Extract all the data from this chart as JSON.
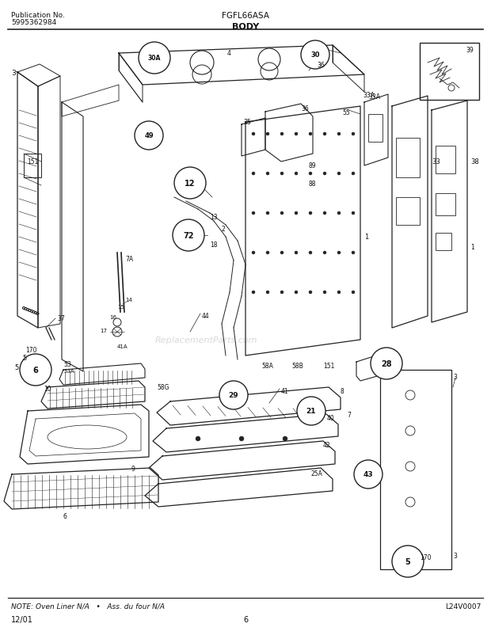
{
  "title_model": "FGFL66ASA",
  "title_section": "BODY",
  "pub_no_label": "Publication No.",
  "pub_no": "5995362984",
  "date": "12/01",
  "page": "6",
  "doc_no": "L24V0007",
  "note": "NOTE: Oven Liner N/A   •   Ass. du four N/A",
  "bg_color": "#ffffff",
  "line_color": "#222222",
  "text_color": "#111111",
  "figsize": [
    6.2,
    8.03
  ],
  "dpi": 100
}
